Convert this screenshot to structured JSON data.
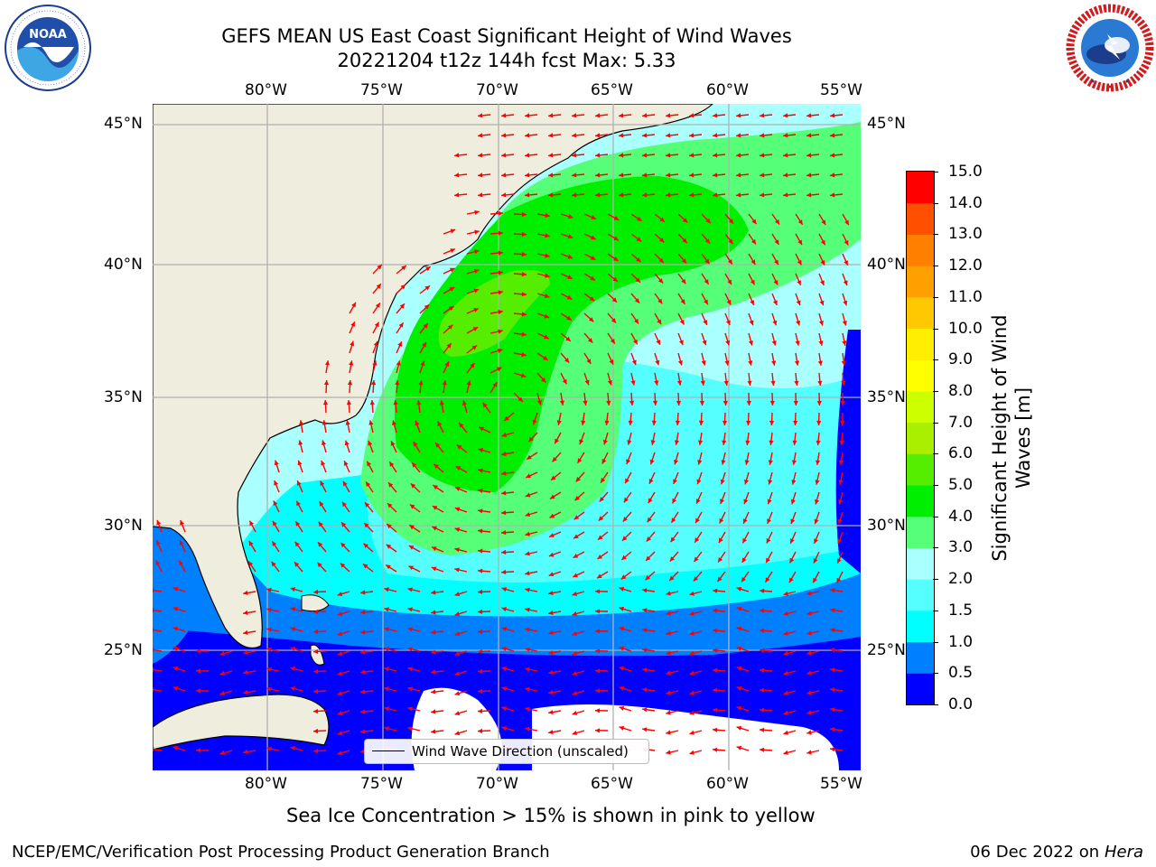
{
  "header": {
    "title_line1": "GEFS MEAN US East Coast Significant Height of Wind Waves",
    "title_line2": "20221204 t12z 144h fcst   Max: 5.33"
  },
  "logos": {
    "noaa_text": "NOAA",
    "noaa_ring_text": "NATIONAL OCEANIC AND ATMOSPHERIC ADMINISTRATION · U.S. DEPARTMENT OF COMMERCE",
    "nws_ring_text": "NATIONAL WEATHER SERVICE"
  },
  "map": {
    "lon_ticks": [
      "80°W",
      "75°W",
      "70°W",
      "65°W",
      "60°W",
      "55°W"
    ],
    "lat_ticks": [
      "45°N",
      "40°N",
      "35°N",
      "30°N",
      "25°N"
    ],
    "lon_range": [
      -85,
      -54.5
    ],
    "lat_range": [
      20,
      46
    ],
    "legend_label": "Wind Wave Direction (unscaled)",
    "arrow_color": "#ff0000",
    "land_color": "#efedde",
    "grid": true
  },
  "colorbar": {
    "title_line1": "Significant Height of Wind",
    "title_line2": "Waves [m]",
    "levels": [
      "0.0",
      "0.5",
      "1.0",
      "1.5",
      "2.0",
      "3.0",
      "4.0",
      "5.0",
      "6.0",
      "7.0",
      "8.0",
      "9.0",
      "10.0",
      "11.0",
      "12.0",
      "13.0",
      "14.0",
      "15.0"
    ],
    "colors": [
      "#0000ff",
      "#0080ff",
      "#00ffff",
      "#55ffff",
      "#aaffff",
      "#55ff77",
      "#00ee00",
      "#55ee00",
      "#aaee00",
      "#ccff00",
      "#ffff00",
      "#ffee00",
      "#ffc800",
      "#ffa000",
      "#ff8000",
      "#ff5000",
      "#ff0000"
    ]
  },
  "footer": {
    "ice_note": "Sea Ice Concentration > 15% is shown in pink to yellow",
    "credit": "NCEP/EMC/Verification Post Processing Product Generation Branch",
    "date": "06 Dec 2022 on",
    "machine": "Hera"
  }
}
